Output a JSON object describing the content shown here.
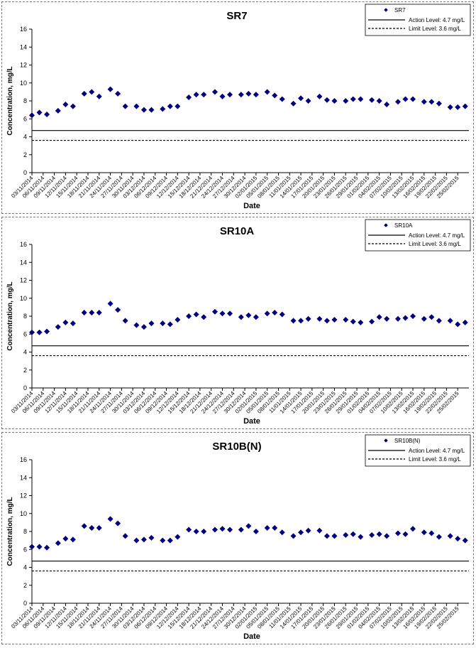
{
  "chart_data": [
    {
      "type": "scatter",
      "title": "SR7",
      "xlabel": "Date",
      "ylabel": "Concentration, mg/L",
      "ylim": [
        0,
        16
      ],
      "yticks": [
        0,
        2,
        4,
        6,
        8,
        10,
        12,
        14,
        16
      ],
      "grid": false,
      "legend_position": "top-right",
      "x_ticks": [
        "03/11/2014",
        "06/11/2014",
        "09/11/2014",
        "12/11/2014",
        "15/11/2014",
        "18/11/2014",
        "21/11/2014",
        "24/11/2014",
        "27/11/2014",
        "30/11/2014",
        "03/12/2014",
        "06/12/2014",
        "09/12/2014",
        "12/12/2014",
        "15/12/2014",
        "18/12/2014",
        "21/12/2014",
        "24/12/2014",
        "27/12/2014",
        "30/12/2014",
        "02/01/2015",
        "05/01/2015",
        "08/01/2015",
        "11/01/2015",
        "14/01/2015",
        "17/01/2015",
        "20/01/2015",
        "23/01/2015",
        "26/01/2015",
        "29/01/2015",
        "01/02/2015",
        "04/02/2015",
        "07/02/2015",
        "10/02/2015",
        "13/02/2015",
        "16/02/2015",
        "19/02/2015",
        "22/02/2015",
        "25/02/2015"
      ],
      "series": [
        {
          "name": "SR7",
          "marker": "diamond",
          "color": "#000080",
          "x": [
            "03/11/2014",
            "05/11/2014",
            "07/11/2014",
            "10/11/2014",
            "12/11/2014",
            "14/11/2014",
            "17/11/2014",
            "19/11/2014",
            "21/11/2014",
            "24/11/2014",
            "26/11/2014",
            "28/11/2014",
            "01/12/2014",
            "03/12/2014",
            "05/12/2014",
            "08/12/2014",
            "10/12/2014",
            "12/12/2014",
            "15/12/2014",
            "17/12/2014",
            "19/12/2014",
            "22/12/2014",
            "24/12/2014",
            "26/12/2014",
            "29/12/2014",
            "31/12/2014",
            "02/01/2015",
            "05/01/2015",
            "07/01/2015",
            "09/01/2015",
            "12/01/2015",
            "14/01/2015",
            "16/01/2015",
            "19/01/2015",
            "21/01/2015",
            "23/01/2015",
            "26/01/2015",
            "28/01/2015",
            "30/01/2015",
            "02/02/2015",
            "04/02/2015",
            "06/02/2015",
            "09/02/2015",
            "11/02/2015",
            "13/02/2015",
            "16/02/2015",
            "18/02/2015",
            "20/02/2015",
            "23/02/2015",
            "25/02/2015",
            "27/02/2015"
          ],
          "y": [
            6.4,
            6.7,
            6.5,
            6.9,
            7.6,
            7.4,
            8.8,
            9.0,
            8.5,
            9.3,
            8.8,
            7.4,
            7.4,
            7.0,
            7.0,
            7.1,
            7.4,
            7.4,
            8.4,
            8.7,
            8.7,
            9.0,
            8.5,
            8.7,
            8.7,
            8.8,
            8.7,
            9.0,
            8.6,
            8.2,
            7.7,
            8.3,
            8.0,
            8.5,
            8.1,
            8.0,
            8.0,
            8.2,
            8.2,
            8.1,
            8.0,
            7.6,
            7.9,
            8.2,
            8.2,
            7.9,
            7.9,
            7.7,
            7.3,
            7.3,
            7.4
          ]
        },
        {
          "name": "Action Level: 4.7 mg/L",
          "type": "line",
          "style": "solid",
          "y": 4.7
        },
        {
          "name": "Limit Level: 3.6 mg/L",
          "type": "line",
          "style": "dashed",
          "y": 3.6
        }
      ]
    },
    {
      "type": "scatter",
      "title": "SR10A",
      "xlabel": "Date",
      "ylabel": "Concentration, mg/L",
      "ylim": [
        0,
        16
      ],
      "yticks": [
        0,
        2,
        4,
        6,
        8,
        10,
        12,
        14,
        16
      ],
      "grid": false,
      "legend_position": "top-right",
      "x_ticks": [
        "03/11/2014",
        "06/11/2014",
        "09/11/2014",
        "12/11/2014",
        "15/11/2014",
        "18/11/2014",
        "21/11/2014",
        "24/11/2014",
        "27/11/2014",
        "30/11/2014",
        "03/12/2014",
        "06/12/2014",
        "09/12/2014",
        "12/12/2014",
        "15/12/2014",
        "18/12/2014",
        "21/12/2014",
        "24/12/2014",
        "27/12/2014",
        "30/12/2014",
        "02/01/2015",
        "05/01/2015",
        "08/01/2015",
        "11/01/2015",
        "14/01/2015",
        "17/01/2015",
        "20/01/2015",
        "23/01/2015",
        "26/01/2015",
        "29/01/2015",
        "01/02/2015",
        "04/02/2015",
        "07/02/2015",
        "10/02/2015",
        "13/02/2015",
        "16/02/2015",
        "19/02/2015",
        "22/02/2015",
        "25/02/2015"
      ],
      "series": [
        {
          "name": "SR10A",
          "marker": "diamond",
          "color": "#000080",
          "x": [
            "03/11/2014",
            "05/11/2014",
            "07/11/2014",
            "10/11/2014",
            "12/11/2014",
            "14/11/2014",
            "17/11/2014",
            "19/11/2014",
            "21/11/2014",
            "24/11/2014",
            "26/11/2014",
            "28/11/2014",
            "01/12/2014",
            "03/12/2014",
            "05/12/2014",
            "08/12/2014",
            "10/12/2014",
            "12/12/2014",
            "15/12/2014",
            "17/12/2014",
            "19/12/2014",
            "22/12/2014",
            "24/12/2014",
            "26/12/2014",
            "29/12/2014",
            "31/12/2014",
            "02/01/2015",
            "05/01/2015",
            "07/01/2015",
            "09/01/2015",
            "12/01/2015",
            "14/01/2015",
            "16/01/2015",
            "19/01/2015",
            "21/01/2015",
            "23/01/2015",
            "26/01/2015",
            "28/01/2015",
            "30/01/2015",
            "02/02/2015",
            "04/02/2015",
            "06/02/2015",
            "09/02/2015",
            "11/02/2015",
            "13/02/2015",
            "16/02/2015",
            "18/02/2015",
            "20/02/2015",
            "23/02/2015",
            "25/02/2015",
            "27/02/2015"
          ],
          "y": [
            6.2,
            6.2,
            6.3,
            6.8,
            7.3,
            7.2,
            8.4,
            8.4,
            8.4,
            9.4,
            8.7,
            7.5,
            7.0,
            6.8,
            7.2,
            7.2,
            7.1,
            7.6,
            8.0,
            8.2,
            7.9,
            8.5,
            8.3,
            8.3,
            7.9,
            8.1,
            7.9,
            8.3,
            8.4,
            8.2,
            7.5,
            7.5,
            7.7,
            7.7,
            7.5,
            7.6,
            7.6,
            7.4,
            7.3,
            7.4,
            7.9,
            7.7,
            7.7,
            7.8,
            8.0,
            7.7,
            7.9,
            7.5,
            7.5,
            7.1,
            7.3
          ]
        },
        {
          "name": "Action Level: 4.7 mg/L",
          "type": "line",
          "style": "solid",
          "y": 4.7
        },
        {
          "name": "Limit Level: 3.6 mg/L",
          "type": "line",
          "style": "dashed",
          "y": 3.6
        }
      ]
    },
    {
      "type": "scatter",
      "title": "SR10B(N)",
      "xlabel": "Date",
      "ylabel": "Concentration, mg/L",
      "ylim": [
        0,
        16
      ],
      "yticks": [
        0,
        2,
        4,
        6,
        8,
        10,
        12,
        14,
        16
      ],
      "grid": false,
      "legend_position": "top-right",
      "x_ticks": [
        "03/11/2014",
        "06/11/2014",
        "09/11/2014",
        "12/11/2014",
        "15/11/2014",
        "18/11/2014",
        "21/11/2014",
        "24/11/2014",
        "27/11/2014",
        "30/11/2014",
        "03/12/2014",
        "06/12/2014",
        "09/12/2014",
        "12/12/2014",
        "15/12/2014",
        "18/12/2014",
        "21/12/2014",
        "24/12/2014",
        "27/12/2014",
        "30/12/2014",
        "02/01/2015",
        "05/01/2015",
        "08/01/2015",
        "11/01/2015",
        "14/01/2015",
        "17/01/2015",
        "20/01/2015",
        "23/01/2015",
        "26/01/2015",
        "29/01/2015",
        "01/02/2015",
        "04/02/2015",
        "07/02/2015",
        "10/02/2015",
        "13/02/2015",
        "16/02/2015",
        "19/02/2015",
        "22/02/2015",
        "25/02/2015"
      ],
      "series": [
        {
          "name": "SR10B(N)",
          "marker": "diamond",
          "color": "#000080",
          "x": [
            "03/11/2014",
            "05/11/2014",
            "07/11/2014",
            "10/11/2014",
            "12/11/2014",
            "14/11/2014",
            "17/11/2014",
            "19/11/2014",
            "21/11/2014",
            "24/11/2014",
            "26/11/2014",
            "28/11/2014",
            "01/12/2014",
            "03/12/2014",
            "05/12/2014",
            "08/12/2014",
            "10/12/2014",
            "12/12/2014",
            "15/12/2014",
            "17/12/2014",
            "19/12/2014",
            "22/12/2014",
            "24/12/2014",
            "26/12/2014",
            "29/12/2014",
            "31/12/2014",
            "02/01/2015",
            "05/01/2015",
            "07/01/2015",
            "09/01/2015",
            "12/01/2015",
            "14/01/2015",
            "16/01/2015",
            "19/01/2015",
            "21/01/2015",
            "23/01/2015",
            "26/01/2015",
            "28/01/2015",
            "30/01/2015",
            "02/02/2015",
            "04/02/2015",
            "06/02/2015",
            "09/02/2015",
            "11/02/2015",
            "13/02/2015",
            "16/02/2015",
            "18/02/2015",
            "20/02/2015",
            "23/02/2015",
            "25/02/2015",
            "27/02/2015"
          ],
          "y": [
            6.3,
            6.3,
            6.2,
            6.7,
            7.2,
            7.1,
            8.6,
            8.4,
            8.4,
            9.4,
            8.9,
            7.5,
            7.0,
            7.1,
            7.3,
            7.0,
            7.0,
            7.4,
            8.2,
            8.0,
            8.0,
            8.2,
            8.3,
            8.2,
            8.2,
            8.6,
            8.0,
            8.4,
            8.4,
            7.9,
            7.5,
            7.9,
            8.1,
            8.1,
            7.5,
            7.5,
            7.6,
            7.7,
            7.4,
            7.6,
            7.7,
            7.5,
            7.8,
            7.7,
            8.3,
            7.9,
            7.8,
            7.4,
            7.5,
            7.2,
            7.0
          ]
        },
        {
          "name": "Action Level: 4.7 mg/L",
          "type": "line",
          "style": "solid",
          "y": 4.7
        },
        {
          "name": "Limit Level: 3.6 mg/L",
          "type": "line",
          "style": "dashed",
          "y": 3.6
        }
      ]
    }
  ]
}
